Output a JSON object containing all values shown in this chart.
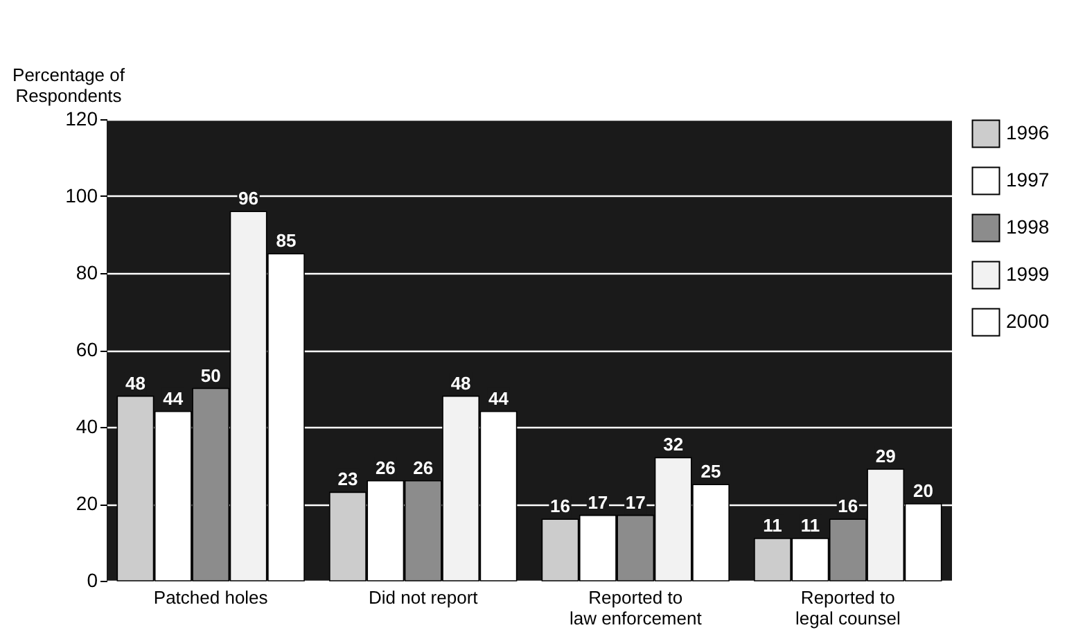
{
  "chart_data": {
    "type": "bar",
    "ylabel": "Percentage of\nRespondents",
    "categories": [
      "Patched holes",
      "Did not report",
      "Reported to\nlaw enforcement",
      "Reported to\nlegal counsel"
    ],
    "series": [
      {
        "name": "1996",
        "color": "#cccccc",
        "values": [
          48,
          23,
          16,
          11
        ]
      },
      {
        "name": "1997",
        "color": "#ffffff",
        "values": [
          44,
          26,
          17,
          11
        ]
      },
      {
        "name": "1998",
        "color": "#8c8c8c",
        "values": [
          50,
          26,
          17,
          16
        ]
      },
      {
        "name": "1999",
        "color": "#f2f2f2",
        "values": [
          96,
          48,
          32,
          29
        ]
      },
      {
        "name": "2000",
        "color": "#ffffff",
        "values": [
          85,
          44,
          25,
          20
        ]
      }
    ],
    "ylim": [
      0,
      120
    ],
    "yticks": [
      0,
      20,
      40,
      60,
      80,
      100,
      120
    ],
    "grid": "y",
    "legend": "right",
    "data_labels": true
  }
}
